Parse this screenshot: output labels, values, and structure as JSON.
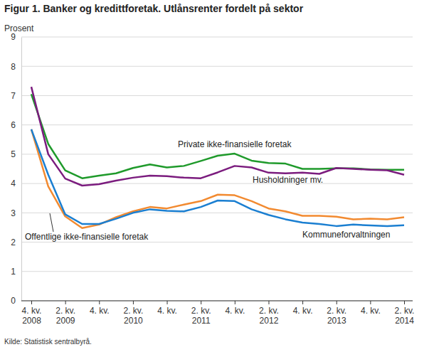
{
  "chart_data": {
    "type": "line",
    "title": "Figur 1. Banker og kredittforetak. Utlånsrenter fordelt på sektor",
    "y_label": "Prosent",
    "source": "Kilde: Statistisk sentralbyrå.",
    "categories": [
      "4. kv.\n2008",
      null,
      "2. kv.\n2009",
      null,
      "4. kv.",
      null,
      "2. kv.\n2010",
      null,
      "4. kv.",
      null,
      "2. kv.\n2011",
      null,
      "4. kv.",
      null,
      "2. kv.\n2012",
      null,
      "4. kv.",
      null,
      "2. kv.\n2013",
      null,
      "4. kv.",
      null,
      "2. kv.\n2014"
    ],
    "ylim": [
      0,
      9
    ],
    "yticks": [
      0,
      1,
      2,
      3,
      4,
      5,
      6,
      7,
      8,
      9
    ],
    "grid": true,
    "series": [
      {
        "name": "Private ikke-finansielle foretak",
        "color": "#1f9a2b",
        "values": [
          7.05,
          5.35,
          4.45,
          4.18,
          4.27,
          4.35,
          4.53,
          4.65,
          4.55,
          4.6,
          4.77,
          4.95,
          5.02,
          4.78,
          4.7,
          4.68,
          4.5,
          4.5,
          4.52,
          4.52,
          4.48,
          4.47,
          4.47
        ]
      },
      {
        "name": "Husholdninger mv.",
        "color": "#7b1c7e",
        "values": [
          7.3,
          5.0,
          4.17,
          3.93,
          3.98,
          4.1,
          4.2,
          4.27,
          4.25,
          4.2,
          4.18,
          4.38,
          4.6,
          4.55,
          4.37,
          4.35,
          4.37,
          4.33,
          4.53,
          4.5,
          4.47,
          4.45,
          4.3
        ]
      },
      {
        "name": "Offentlige ikke-finansielle foretak",
        "color": "#f28a30",
        "values": [
          5.85,
          3.9,
          2.88,
          2.48,
          2.6,
          2.85,
          3.05,
          3.2,
          3.15,
          3.28,
          3.4,
          3.62,
          3.6,
          3.4,
          3.15,
          3.05,
          2.9,
          2.9,
          2.87,
          2.78,
          2.8,
          2.78,
          2.85
        ]
      },
      {
        "name": "Kommuneforvaltningen",
        "color": "#1b7fd1",
        "values": [
          5.85,
          4.3,
          2.95,
          2.62,
          2.62,
          2.8,
          3.0,
          3.12,
          3.07,
          3.05,
          3.2,
          3.42,
          3.4,
          3.12,
          2.93,
          2.78,
          2.67,
          2.62,
          2.55,
          2.6,
          2.57,
          2.55,
          2.58
        ]
      }
    ]
  }
}
